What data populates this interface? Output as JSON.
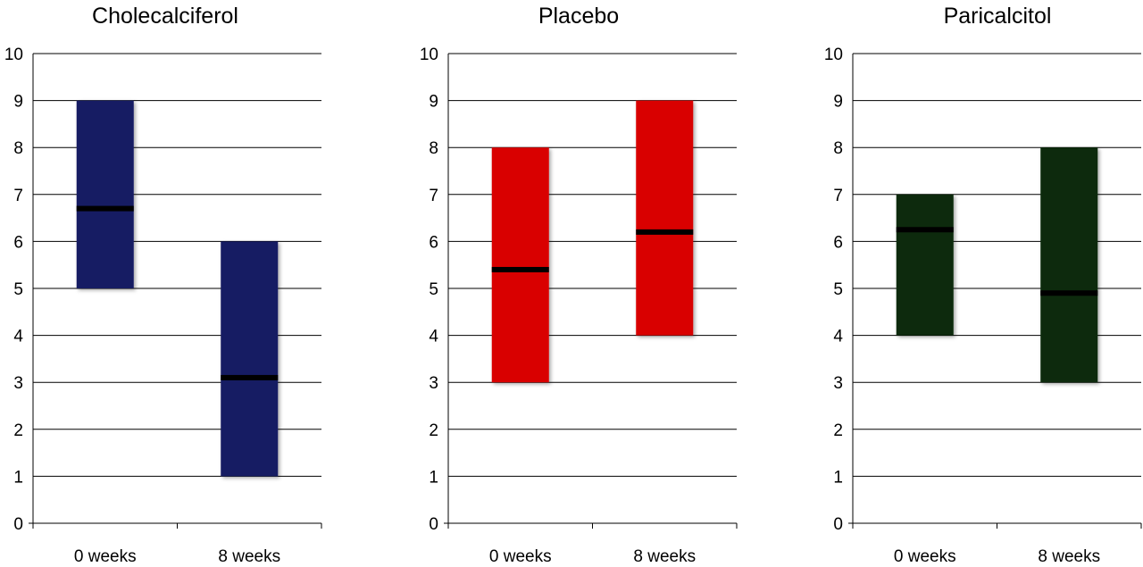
{
  "chart_data": [
    {
      "type": "bar",
      "subtype": "floating-range-with-median",
      "title": "Cholecalciferol",
      "categories": [
        "0 weeks",
        "8 weeks"
      ],
      "ranges": [
        {
          "low": 5,
          "high": 9,
          "median": 6.7
        },
        {
          "low": 1,
          "high": 6,
          "median": 3.1
        }
      ],
      "color": "#131b63",
      "ylim": [
        0,
        10
      ],
      "yticks": [
        "0",
        "1",
        "2",
        "3",
        "4",
        "5",
        "6",
        "7",
        "8",
        "9",
        "10"
      ],
      "grid": true
    },
    {
      "type": "bar",
      "subtype": "floating-range-with-median",
      "title": "Placebo",
      "categories": [
        "0 weeks",
        "8 weeks"
      ],
      "ranges": [
        {
          "low": 3,
          "high": 8,
          "median": 5.4
        },
        {
          "low": 4,
          "high": 9,
          "median": 6.2
        }
      ],
      "color": "#d90000",
      "ylim": [
        0,
        10
      ],
      "yticks": [
        "0",
        "1",
        "2",
        "3",
        "4",
        "5",
        "6",
        "7",
        "8",
        "9",
        "10"
      ],
      "grid": true
    },
    {
      "type": "bar",
      "subtype": "floating-range-with-median",
      "title": "Paricalcitol",
      "categories": [
        "0 weeks",
        "8 weeks"
      ],
      "ranges": [
        {
          "low": 4,
          "high": 7,
          "median": 6.25
        },
        {
          "low": 3,
          "high": 8,
          "median": 4.9
        }
      ],
      "color": "#0a2a0a",
      "ylim": [
        0,
        10
      ],
      "yticks": [
        "0",
        "1",
        "2",
        "3",
        "4",
        "5",
        "6",
        "7",
        "8",
        "9",
        "10"
      ],
      "grid": true
    }
  ]
}
